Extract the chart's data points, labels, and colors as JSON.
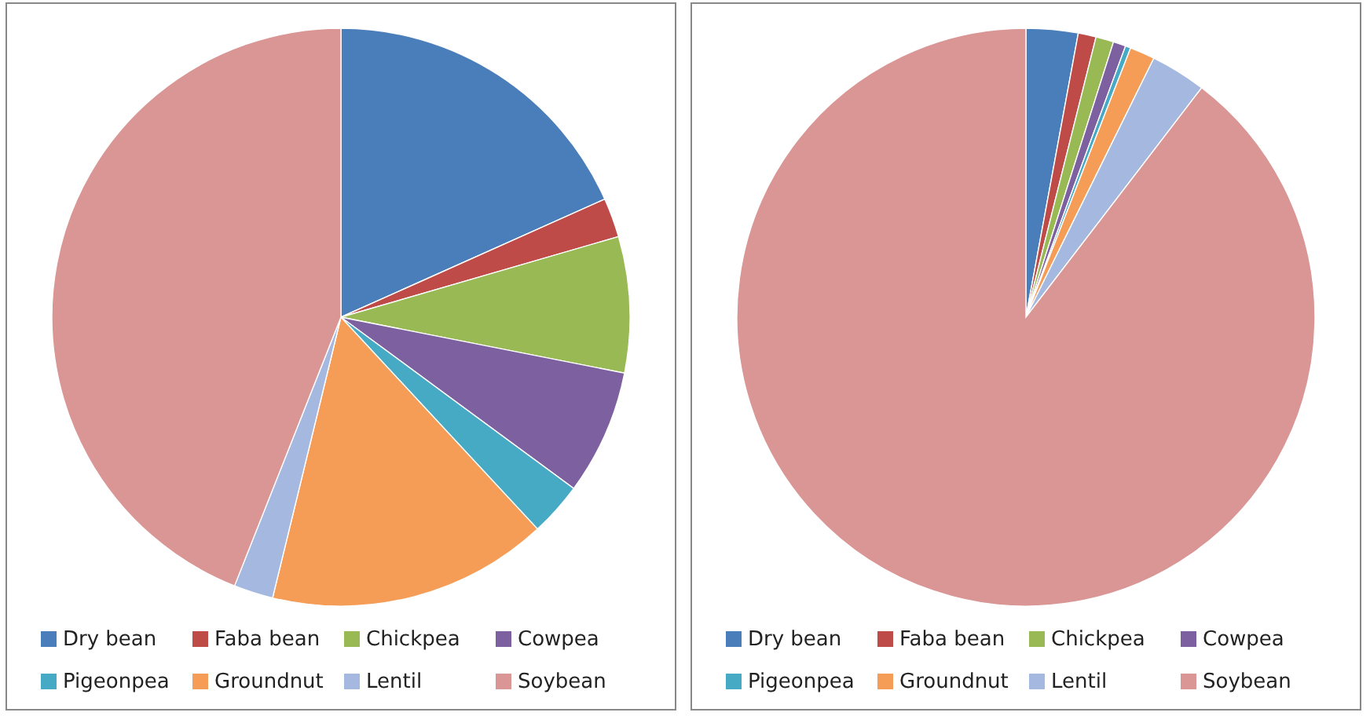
{
  "chart_data": [
    {
      "type": "pie",
      "categories": [
        "Dry bean",
        "Faba bean",
        "Chickpea",
        "Cowpea",
        "Pigeonpea",
        "Groundnut",
        "Lentil",
        "Soybean"
      ],
      "values": [
        18.3,
        2.2,
        7.6,
        7.0,
        3.0,
        15.7,
        2.2,
        44.0
      ],
      "colors": [
        "#4a7ebb",
        "#be4b48",
        "#98b954",
        "#7d60a0",
        "#46aac5",
        "#f59d56",
        "#a5b9e0",
        "#d99694"
      ],
      "legend": "bottom"
    },
    {
      "type": "pie",
      "categories": [
        "Dry bean",
        "Faba bean",
        "Chickpea",
        "Cowpea",
        "Pigeonpea",
        "Groundnut",
        "Lentil",
        "Soybean"
      ],
      "values": [
        2.9,
        1.0,
        1.0,
        0.7,
        0.3,
        1.4,
        3.1,
        89.6
      ],
      "colors": [
        "#4a7ebb",
        "#be4b48",
        "#98b954",
        "#7d60a0",
        "#46aac5",
        "#f59d56",
        "#a5b9e0",
        "#d99694"
      ],
      "legend": "bottom"
    }
  ]
}
